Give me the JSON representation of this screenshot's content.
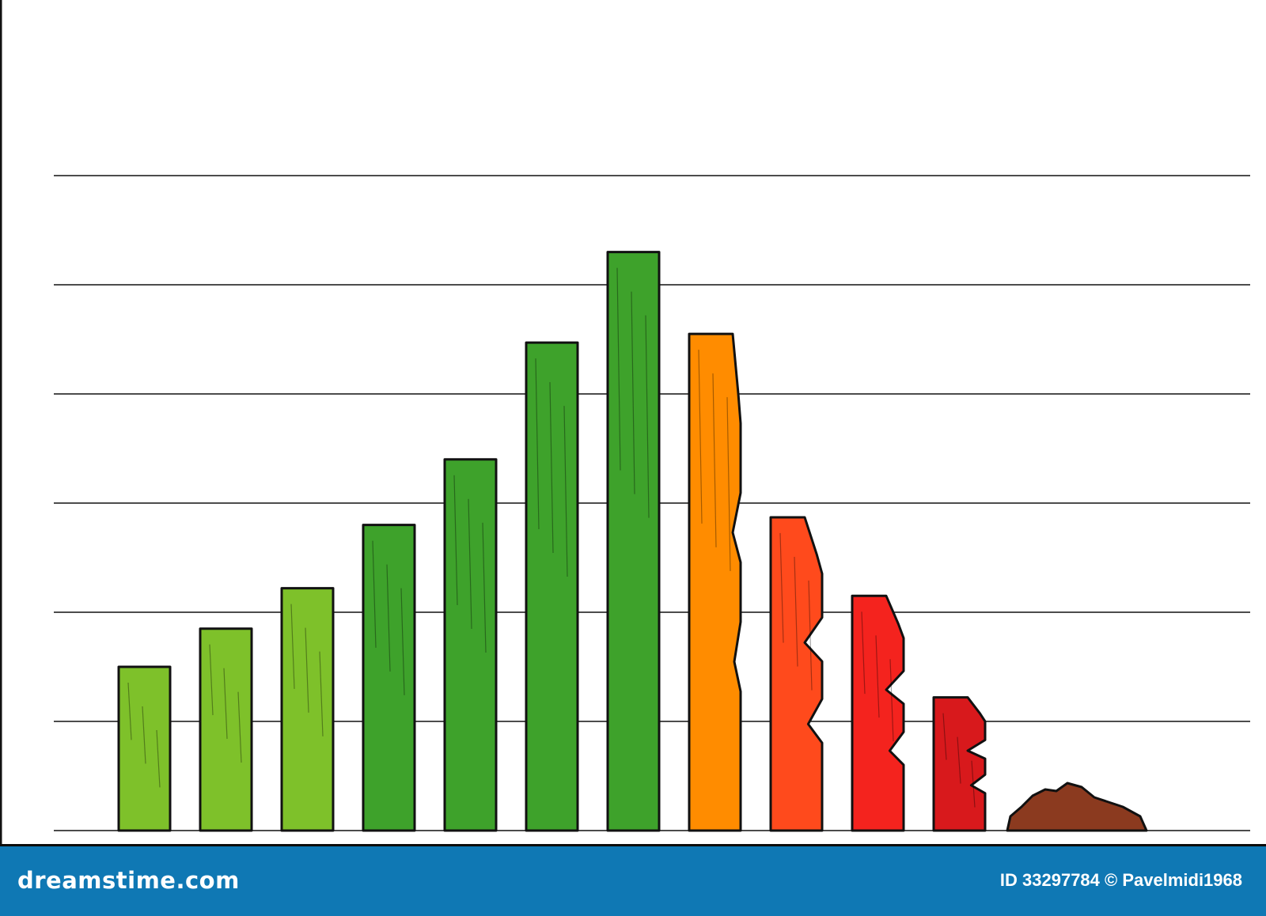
{
  "chart_data": {
    "type": "bar",
    "title": "",
    "xlabel": "",
    "ylabel": "",
    "categories": [
      "",
      "",
      "",
      "",
      "",
      "",
      "",
      "",
      "",
      "",
      "",
      ""
    ],
    "values": [
      1.5,
      1.85,
      2.22,
      2.8,
      3.4,
      4.47,
      5.3,
      4.55,
      2.87,
      2.15,
      1.22,
      0.5
    ],
    "ylim": [
      0,
      6
    ],
    "yticks": [
      0,
      1,
      2,
      3,
      4,
      5,
      6
    ],
    "grid": true,
    "tick_labels_shown": false,
    "bar_colors": [
      "#7ec12a",
      "#7ec12a",
      "#7ec12a",
      "#3ea22b",
      "#3ea22b",
      "#3ea22b",
      "#3ea22b",
      "#ff8c00",
      "#ff4a1c",
      "#f4231e",
      "#d8191c",
      "#8b3a1f"
    ],
    "bar_states": [
      "intact",
      "intact",
      "intact",
      "intact",
      "intact",
      "intact",
      "intact",
      "cracked",
      "crumbling",
      "crumbling",
      "crumbling",
      "rubble"
    ]
  },
  "footer": {
    "brand": "dreamstime.com",
    "credit": "ID 33297784 © Pavelmidi1968",
    "background": "#0f78b4"
  }
}
